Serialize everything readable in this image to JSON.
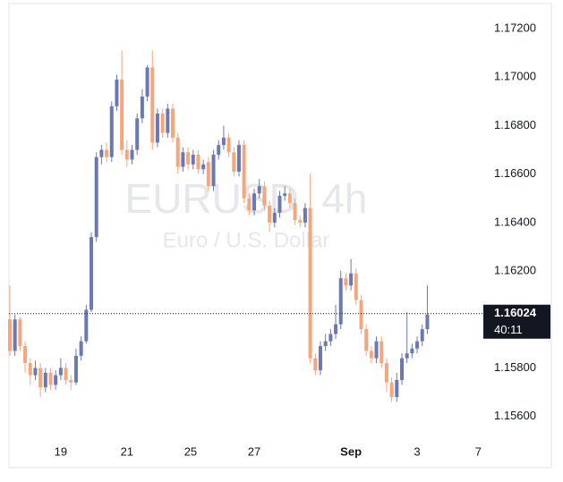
{
  "chart_data": {
    "type": "candlestick",
    "title": "EURUSD, 4h",
    "subtitle": "Euro / U.S. Dollar",
    "up_color": "#6a79b3",
    "down_color": "#f7a57a",
    "open": [
      1.16,
      1.1587,
      1.16,
      1.1589,
      1.1582,
      1.1577,
      1.158,
      1.1572,
      1.1578,
      1.1573,
      1.1577,
      1.158,
      1.1575,
      1.1574,
      1.1585,
      1.1591,
      1.1604,
      1.1634,
      1.1667,
      1.167,
      1.1667,
      1.1688,
      1.1699,
      1.167,
      1.1666,
      1.167,
      1.1683,
      1.1692,
      1.1704,
      1.1673,
      1.1685,
      1.1677,
      1.1687,
      1.1675,
      1.1663,
      1.1669,
      1.1664,
      1.1668,
      1.1662,
      1.1665,
      1.1655,
      1.1668,
      1.1672,
      1.1675,
      1.1669,
      1.1661,
      1.1672,
      1.165,
      1.1645,
      1.1652,
      1.1655,
      1.1647,
      1.164,
      1.1644,
      1.1651,
      1.1652,
      1.1648,
      1.1641,
      1.164,
      1.1646,
      1.1584,
      1.1579,
      1.1589,
      1.1591,
      1.1594,
      1.1598,
      1.1617,
      1.1614,
      1.1619,
      1.1608,
      1.1596,
      1.1587,
      1.1584,
      1.1591,
      1.1582,
      1.1574,
      1.1568,
      1.1575,
      1.1584,
      1.1586,
      1.1588,
      1.1591,
      1.1596
    ],
    "high": [
      1.1614,
      1.1602,
      1.1601,
      1.1591,
      1.1584,
      1.1583,
      1.1582,
      1.158,
      1.158,
      1.1579,
      1.1584,
      1.1582,
      1.1577,
      1.1588,
      1.1593,
      1.1606,
      1.1636,
      1.1669,
      1.1672,
      1.1673,
      1.169,
      1.1701,
      1.1711,
      1.1674,
      1.1672,
      1.1685,
      1.1695,
      1.1705,
      1.1711,
      1.1687,
      1.1687,
      1.1689,
      1.1689,
      1.1677,
      1.1671,
      1.1671,
      1.167,
      1.167,
      1.1666,
      1.1667,
      1.167,
      1.1674,
      1.168,
      1.1677,
      1.1671,
      1.1674,
      1.1674,
      1.1652,
      1.1654,
      1.1658,
      1.1657,
      1.1649,
      1.1646,
      1.1653,
      1.1655,
      1.1654,
      1.165,
      1.1643,
      1.1648,
      1.166,
      1.1586,
      1.1591,
      1.1594,
      1.1596,
      1.1606,
      1.162,
      1.1619,
      1.1625,
      1.1621,
      1.161,
      1.1598,
      1.1589,
      1.1593,
      1.1593,
      1.1584,
      1.1576,
      1.1578,
      1.1586,
      1.1603,
      1.159,
      1.1593,
      1.1598,
      1.1614
    ],
    "low": [
      1.1585,
      1.1585,
      1.1587,
      1.1578,
      1.1573,
      1.1575,
      1.1568,
      1.157,
      1.1571,
      1.1571,
      1.1575,
      1.1573,
      1.1571,
      1.1573,
      1.1583,
      1.159,
      1.1603,
      1.1632,
      1.1664,
      1.1665,
      1.1665,
      1.1686,
      1.1668,
      1.1663,
      1.1664,
      1.1668,
      1.1681,
      1.169,
      1.167,
      1.1671,
      1.1675,
      1.1675,
      1.1673,
      1.166,
      1.1661,
      1.1662,
      1.1662,
      1.166,
      1.166,
      1.1653,
      1.1653,
      1.1666,
      1.167,
      1.1667,
      1.1659,
      1.1659,
      1.1648,
      1.1643,
      1.1643,
      1.165,
      1.1645,
      1.1636,
      1.1638,
      1.1642,
      1.1649,
      1.1646,
      1.1639,
      1.1638,
      1.1638,
      1.1582,
      1.1577,
      1.1577,
      1.1587,
      1.1589,
      1.1592,
      1.1596,
      1.1612,
      1.1612,
      1.1606,
      1.1594,
      1.1585,
      1.1582,
      1.1582,
      1.158,
      1.157,
      1.1566,
      1.1566,
      1.1573,
      1.1582,
      1.1584,
      1.1586,
      1.1589,
      1.1594
    ],
    "close": [
      1.1587,
      1.16,
      1.1589,
      1.1582,
      1.1577,
      1.158,
      1.1572,
      1.1578,
      1.1573,
      1.1577,
      1.158,
      1.1575,
      1.1574,
      1.1585,
      1.1591,
      1.1604,
      1.1634,
      1.1667,
      1.167,
      1.1667,
      1.1688,
      1.1699,
      1.167,
      1.1666,
      1.167,
      1.1683,
      1.1692,
      1.1704,
      1.1673,
      1.1685,
      1.1677,
      1.1687,
      1.1675,
      1.1663,
      1.1669,
      1.1664,
      1.1668,
      1.1662,
      1.1664,
      1.1655,
      1.1668,
      1.1672,
      1.1675,
      1.1669,
      1.1661,
      1.1672,
      1.165,
      1.1645,
      1.1652,
      1.1655,
      1.1647,
      1.164,
      1.1644,
      1.1651,
      1.1652,
      1.1648,
      1.1641,
      1.164,
      1.1646,
      1.1584,
      1.1579,
      1.1589,
      1.1591,
      1.1594,
      1.1598,
      1.1617,
      1.1614,
      1.1619,
      1.1608,
      1.1596,
      1.1587,
      1.1584,
      1.1591,
      1.1582,
      1.1574,
      1.1568,
      1.1575,
      1.1584,
      1.1586,
      1.1588,
      1.1591,
      1.1596,
      1.1602
    ],
    "xlim": [
      0,
      93
    ],
    "xticks": [
      {
        "value": 10,
        "label": "19"
      },
      {
        "value": 23,
        "label": "21"
      },
      {
        "value": 35.5,
        "label": "25"
      },
      {
        "value": 48,
        "label": "27"
      },
      {
        "value": 67,
        "label": "Sep"
      },
      {
        "value": 80,
        "label": "3"
      },
      {
        "value": 92,
        "label": "7"
      }
    ],
    "ylim": [
      1.1551,
      1.173
    ],
    "yticks": [
      {
        "value": 1.156,
        "label": "1.15600"
      },
      {
        "value": 1.158,
        "label": "1.15800"
      },
      {
        "value": 1.162,
        "label": "1.16200"
      },
      {
        "value": 1.164,
        "label": "1.16400"
      },
      {
        "value": 1.166,
        "label": "1.16600"
      },
      {
        "value": 1.168,
        "label": "1.16800"
      },
      {
        "value": 1.17,
        "label": "1.17000"
      },
      {
        "value": 1.172,
        "label": "1.17200"
      }
    ],
    "last_price": {
      "value": 1.16024,
      "label": "1.16024"
    },
    "countdown": "40:11"
  }
}
